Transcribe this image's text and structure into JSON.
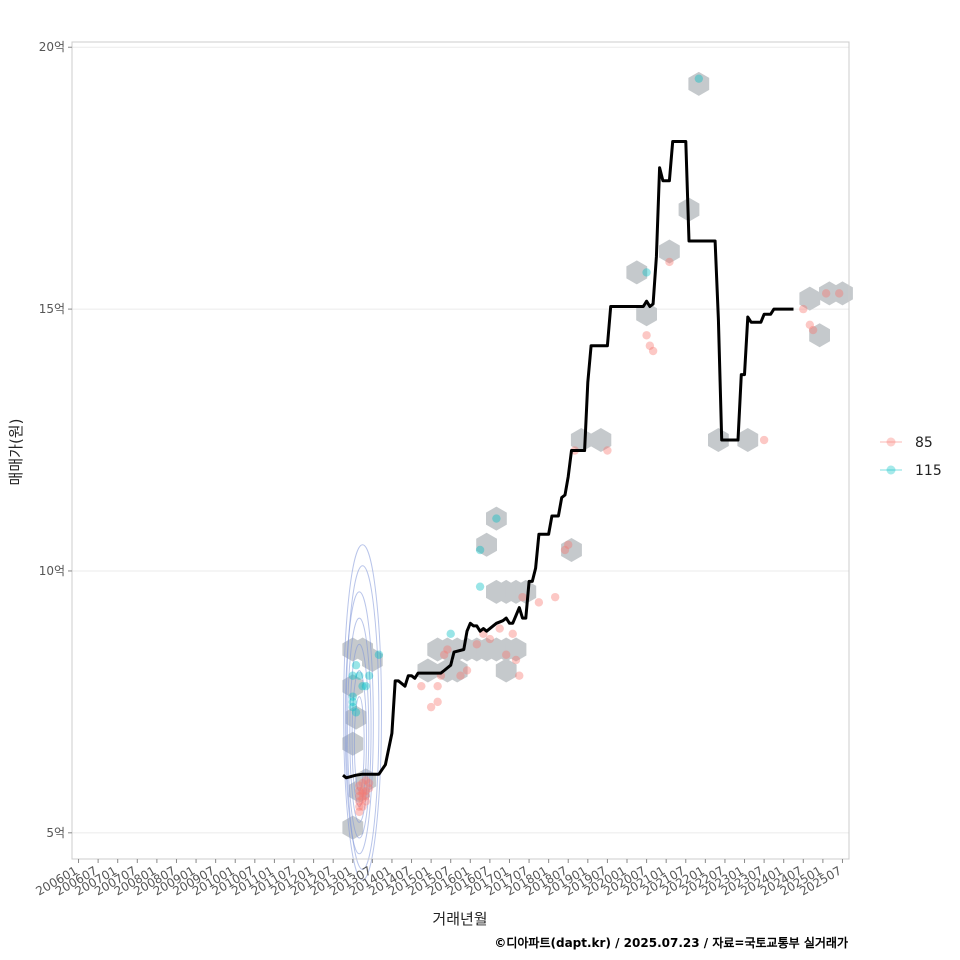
{
  "chart_data": {
    "type": "scatter",
    "xlabel": "거래년월",
    "ylabel": "매매가(원)",
    "caption": "©디아파트(dapt.kr) / 2025.07.23 / 자료=국토교통부 실거래가",
    "x_unit": "months since 2006-01",
    "xlim": [
      -2,
      236
    ],
    "ylim": [
      4.5,
      20.1
    ],
    "y_ticks": [
      {
        "value": 5,
        "label": "5억"
      },
      {
        "value": 10,
        "label": "10억"
      },
      {
        "value": 15,
        "label": "15억"
      },
      {
        "value": 20,
        "label": "20억"
      }
    ],
    "x_ticks": [
      {
        "value": 0,
        "label": "200601"
      },
      {
        "value": 6,
        "label": "200607"
      },
      {
        "value": 12,
        "label": "200701"
      },
      {
        "value": 18,
        "label": "200707"
      },
      {
        "value": 24,
        "label": "200801"
      },
      {
        "value": 30,
        "label": "200807"
      },
      {
        "value": 36,
        "label": "200901"
      },
      {
        "value": 42,
        "label": "200907"
      },
      {
        "value": 48,
        "label": "201001"
      },
      {
        "value": 54,
        "label": "201007"
      },
      {
        "value": 60,
        "label": "201101"
      },
      {
        "value": 66,
        "label": "201107"
      },
      {
        "value": 72,
        "label": "201201"
      },
      {
        "value": 78,
        "label": "201207"
      },
      {
        "value": 84,
        "label": "201301"
      },
      {
        "value": 90,
        "label": "201307"
      },
      {
        "value": 96,
        "label": "201401"
      },
      {
        "value": 102,
        "label": "201407"
      },
      {
        "value": 108,
        "label": "201501"
      },
      {
        "value": 114,
        "label": "201507"
      },
      {
        "value": 120,
        "label": "201601"
      },
      {
        "value": 126,
        "label": "201607"
      },
      {
        "value": 132,
        "label": "201701"
      },
      {
        "value": 138,
        "label": "201707"
      },
      {
        "value": 144,
        "label": "201801"
      },
      {
        "value": 150,
        "label": "201807"
      },
      {
        "value": 156,
        "label": "201901"
      },
      {
        "value": 162,
        "label": "201907"
      },
      {
        "value": 168,
        "label": "202001"
      },
      {
        "value": 174,
        "label": "202007"
      },
      {
        "value": 180,
        "label": "202101"
      },
      {
        "value": 186,
        "label": "202107"
      },
      {
        "value": 192,
        "label": "202201"
      },
      {
        "value": 198,
        "label": "202207"
      },
      {
        "value": 204,
        "label": "202301"
      },
      {
        "value": 210,
        "label": "202307"
      },
      {
        "value": 216,
        "label": "202401"
      },
      {
        "value": 222,
        "label": "202407"
      },
      {
        "value": 228,
        "label": "202501"
      },
      {
        "value": 234,
        "label": "202507"
      }
    ],
    "legend": {
      "position": "right",
      "entries": [
        {
          "name": "85",
          "color": "#F8766D"
        },
        {
          "name": "115",
          "color": "#00BFC4"
        }
      ]
    },
    "series": [
      {
        "name": "85",
        "color": "#F8766D",
        "points": [
          [
            86,
            5.4
          ],
          [
            86,
            5.5
          ],
          [
            86,
            5.6
          ],
          [
            86,
            5.7
          ],
          [
            86,
            5.8
          ],
          [
            86,
            5.9
          ],
          [
            87,
            5.5
          ],
          [
            87,
            5.65
          ],
          [
            87,
            5.8
          ],
          [
            87,
            5.95
          ],
          [
            87,
            5.75
          ],
          [
            88,
            5.6
          ],
          [
            88,
            5.8
          ],
          [
            88,
            6.0
          ],
          [
            88,
            5.7
          ],
          [
            89,
            5.85
          ],
          [
            89,
            5.95
          ],
          [
            105,
            7.8
          ],
          [
            108,
            7.4
          ],
          [
            110,
            7.5
          ],
          [
            110,
            7.8
          ],
          [
            111,
            8.0
          ],
          [
            112,
            8.4
          ],
          [
            113,
            8.5
          ],
          [
            117,
            8.0
          ],
          [
            119,
            8.1
          ],
          [
            122,
            8.6
          ],
          [
            124,
            8.8
          ],
          [
            126,
            8.7
          ],
          [
            129,
            8.9
          ],
          [
            131,
            8.4
          ],
          [
            133,
            8.8
          ],
          [
            134,
            8.3
          ],
          [
            135,
            8.0
          ],
          [
            136,
            9.5
          ],
          [
            141,
            9.4
          ],
          [
            146,
            9.5
          ],
          [
            149,
            10.4
          ],
          [
            150,
            10.5
          ],
          [
            152,
            12.3
          ],
          [
            162,
            12.3
          ],
          [
            174,
            14.5
          ],
          [
            175,
            14.3
          ],
          [
            176,
            14.2
          ],
          [
            181,
            15.9
          ],
          [
            210,
            12.5
          ],
          [
            222,
            15.0
          ],
          [
            224,
            14.7
          ],
          [
            225,
            14.6
          ],
          [
            229,
            15.3
          ],
          [
            233,
            15.3
          ]
        ]
      },
      {
        "name": "115",
        "color": "#00BFC4",
        "points": [
          [
            84,
            7.4
          ],
          [
            84,
            7.5
          ],
          [
            84,
            7.6
          ],
          [
            84,
            8.0
          ],
          [
            85,
            7.3
          ],
          [
            85,
            8.2
          ],
          [
            86,
            8.0
          ],
          [
            87,
            7.8
          ],
          [
            88,
            7.8
          ],
          [
            89,
            8.0
          ],
          [
            92,
            8.4
          ],
          [
            114,
            8.8
          ],
          [
            123,
            10.4
          ],
          [
            123,
            9.7
          ],
          [
            128,
            11.0
          ],
          [
            174,
            15.7
          ],
          [
            190,
            19.4
          ]
        ]
      }
    ],
    "median_line": [
      [
        81,
        6.1
      ],
      [
        82,
        6.05
      ],
      [
        85,
        6.1
      ],
      [
        87,
        6.12
      ],
      [
        92,
        6.12
      ],
      [
        94,
        6.3
      ],
      [
        96,
        6.9
      ],
      [
        97,
        7.9
      ],
      [
        98,
        7.9
      ],
      [
        100,
        7.8
      ],
      [
        101,
        8.0
      ],
      [
        102,
        8.0
      ],
      [
        103,
        7.95
      ],
      [
        104,
        8.05
      ],
      [
        105,
        8.05
      ],
      [
        111,
        8.05
      ],
      [
        112,
        8.1
      ],
      [
        114,
        8.2
      ],
      [
        115,
        8.45
      ],
      [
        118,
        8.5
      ],
      [
        119,
        8.85
      ],
      [
        120,
        9.0
      ],
      [
        121,
        8.95
      ],
      [
        122,
        8.95
      ],
      [
        123,
        8.85
      ],
      [
        124,
        8.9
      ],
      [
        125,
        8.85
      ],
      [
        127,
        8.95
      ],
      [
        128,
        9.0
      ],
      [
        130,
        9.05
      ],
      [
        131,
        9.1
      ],
      [
        132,
        9.0
      ],
      [
        133,
        9.0
      ],
      [
        134,
        9.15
      ],
      [
        135,
        9.3
      ],
      [
        136,
        9.1
      ],
      [
        137,
        9.1
      ],
      [
        138,
        9.8
      ],
      [
        139,
        9.8
      ],
      [
        140,
        10.05
      ],
      [
        141,
        10.7
      ],
      [
        144,
        10.7
      ],
      [
        145,
        11.05
      ],
      [
        147,
        11.05
      ],
      [
        148,
        11.4
      ],
      [
        149,
        11.45
      ],
      [
        150,
        11.8
      ],
      [
        151,
        12.3
      ],
      [
        155,
        12.3
      ],
      [
        156,
        13.6
      ],
      [
        157,
        14.3
      ],
      [
        162,
        14.3
      ],
      [
        163,
        15.05
      ],
      [
        173,
        15.05
      ],
      [
        174,
        15.15
      ],
      [
        175,
        15.05
      ],
      [
        176,
        15.1
      ],
      [
        177,
        16.0
      ],
      [
        178,
        17.7
      ],
      [
        179,
        17.45
      ],
      [
        181,
        17.45
      ],
      [
        182,
        18.2
      ],
      [
        186,
        18.2
      ],
      [
        187,
        16.3
      ],
      [
        195,
        16.3
      ],
      [
        196,
        14.8
      ],
      [
        197,
        12.5
      ],
      [
        202,
        12.5
      ],
      [
        203,
        13.75
      ],
      [
        204,
        13.75
      ],
      [
        205,
        14.85
      ],
      [
        206,
        14.75
      ],
      [
        209,
        14.75
      ],
      [
        210,
        14.9
      ],
      [
        212,
        14.9
      ],
      [
        213,
        15.0
      ],
      [
        219,
        15.0
      ]
    ],
    "hexbins": [
      [
        84,
        8.5
      ],
      [
        87,
        8.5
      ],
      [
        90,
        8.3
      ],
      [
        84,
        7.8
      ],
      [
        85,
        7.2
      ],
      [
        84,
        6.7
      ],
      [
        86,
        5.8
      ],
      [
        88,
        6.0
      ],
      [
        84,
        5.1
      ],
      [
        107,
        8.1
      ],
      [
        110,
        8.5
      ],
      [
        113,
        8.5
      ],
      [
        116,
        8.5
      ],
      [
        113,
        8.1
      ],
      [
        116,
        8.1
      ],
      [
        119,
        8.5
      ],
      [
        122,
        8.5
      ],
      [
        125,
        8.5
      ],
      [
        128,
        8.5
      ],
      [
        131,
        8.5
      ],
      [
        134,
        8.5
      ],
      [
        131,
        8.1
      ],
      [
        128,
        9.6
      ],
      [
        131,
        9.6
      ],
      [
        134,
        9.6
      ],
      [
        137,
        9.6
      ],
      [
        125,
        10.5
      ],
      [
        128,
        11.0
      ],
      [
        151,
        10.4
      ],
      [
        154,
        12.5
      ],
      [
        160,
        12.5
      ],
      [
        171,
        15.7
      ],
      [
        174,
        14.9
      ],
      [
        181,
        16.1
      ],
      [
        187,
        16.9
      ],
      [
        190,
        19.3
      ],
      [
        196,
        12.5
      ],
      [
        205,
        12.5
      ],
      [
        224,
        15.2
      ],
      [
        227,
        14.5
      ],
      [
        230,
        15.3
      ],
      [
        234,
        15.3
      ]
    ],
    "density_contours": [
      {
        "cx": 86,
        "cy": 6.7,
        "rx": 1.5,
        "ry": 0.9
      },
      {
        "cx": 86,
        "cy": 6.8,
        "rx": 2.2,
        "ry": 1.3
      },
      {
        "cx": 86,
        "cy": 6.9,
        "rx": 2.9,
        "ry": 1.7
      },
      {
        "cx": 86,
        "cy": 7.0,
        "rx": 3.6,
        "ry": 2.1
      },
      {
        "cx": 86,
        "cy": 7.1,
        "rx": 4.3,
        "ry": 2.5
      },
      {
        "cx": 87,
        "cy": 7.2,
        "rx": 5.0,
        "ry": 2.9
      },
      {
        "cx": 87,
        "cy": 7.3,
        "rx": 5.8,
        "ry": 3.2
      }
    ]
  }
}
